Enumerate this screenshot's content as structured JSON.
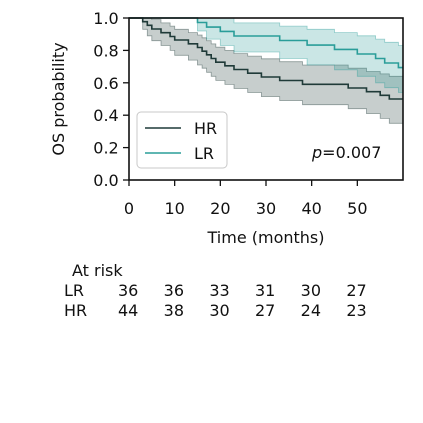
{
  "chart_data": {
    "type": "line",
    "subtype": "kaplan-meier",
    "xlabel": "Time (months)",
    "ylabel": "OS probability",
    "xlim": [
      0,
      60
    ],
    "ylim": [
      0,
      1
    ],
    "xticks": [
      "0",
      "10",
      "20",
      "30",
      "40",
      "50"
    ],
    "yticks": [
      "0.0",
      "0.2",
      "0.4",
      "0.6",
      "0.8",
      "1.0"
    ],
    "grid": false,
    "legend_position": "lower-left",
    "annotation": {
      "prefix": "p",
      "value": "=0.007"
    },
    "colors": {
      "HR": "#1f3a38",
      "LR": "#2a9d99"
    },
    "series": [
      {
        "name": "HR",
        "steps": [
          [
            0,
            1.0
          ],
          [
            3,
            0.977
          ],
          [
            4,
            0.955
          ],
          [
            5,
            0.932
          ],
          [
            7,
            0.909
          ],
          [
            9,
            0.886
          ],
          [
            10,
            0.864
          ],
          [
            13,
            0.841
          ],
          [
            15,
            0.818
          ],
          [
            16,
            0.795
          ],
          [
            17,
            0.773
          ],
          [
            18,
            0.75
          ],
          [
            19,
            0.727
          ],
          [
            21,
            0.705
          ],
          [
            23,
            0.682
          ],
          [
            26,
            0.659
          ],
          [
            29,
            0.636
          ],
          [
            33,
            0.614
          ],
          [
            38,
            0.591
          ],
          [
            48,
            0.568
          ],
          [
            52,
            0.545
          ],
          [
            55,
            0.523
          ],
          [
            57,
            0.5
          ]
        ],
        "ci_upper": [
          [
            0,
            1.0
          ],
          [
            3,
            1.0
          ],
          [
            4,
            1.0
          ],
          [
            5,
            0.99
          ],
          [
            7,
            0.97
          ],
          [
            9,
            0.95
          ],
          [
            10,
            0.93
          ],
          [
            13,
            0.91
          ],
          [
            15,
            0.895
          ],
          [
            16,
            0.878
          ],
          [
            17,
            0.86
          ],
          [
            18,
            0.84
          ],
          [
            19,
            0.82
          ],
          [
            21,
            0.8
          ],
          [
            23,
            0.78
          ],
          [
            26,
            0.765
          ],
          [
            29,
            0.748
          ],
          [
            33,
            0.73
          ],
          [
            38,
            0.71
          ],
          [
            48,
            0.69
          ],
          [
            52,
            0.67
          ],
          [
            55,
            0.655
          ],
          [
            57,
            0.64
          ]
        ],
        "ci_lower": [
          [
            0,
            1.0
          ],
          [
            3,
            0.93
          ],
          [
            4,
            0.89
          ],
          [
            5,
            0.86
          ],
          [
            7,
            0.83
          ],
          [
            9,
            0.8
          ],
          [
            10,
            0.77
          ],
          [
            13,
            0.74
          ],
          [
            15,
            0.71
          ],
          [
            16,
            0.69
          ],
          [
            17,
            0.665
          ],
          [
            18,
            0.64
          ],
          [
            19,
            0.615
          ],
          [
            21,
            0.59
          ],
          [
            23,
            0.565
          ],
          [
            26,
            0.54
          ],
          [
            29,
            0.515
          ],
          [
            33,
            0.49
          ],
          [
            38,
            0.465
          ],
          [
            48,
            0.44
          ],
          [
            52,
            0.41
          ],
          [
            55,
            0.38
          ],
          [
            57,
            0.35
          ]
        ]
      },
      {
        "name": "LR",
        "steps": [
          [
            0,
            1.0
          ],
          [
            15,
            0.972
          ],
          [
            17,
            0.944
          ],
          [
            20,
            0.917
          ],
          [
            23,
            0.889
          ],
          [
            33,
            0.861
          ],
          [
            39,
            0.833
          ],
          [
            45,
            0.806
          ],
          [
            50,
            0.778
          ],
          [
            54,
            0.75
          ],
          [
            56,
            0.722
          ],
          [
            59,
            0.694
          ]
        ],
        "ci_upper": [
          [
            0,
            1.0
          ],
          [
            15,
            1.0
          ],
          [
            17,
            1.0
          ],
          [
            20,
            1.0
          ],
          [
            23,
            0.97
          ],
          [
            33,
            0.95
          ],
          [
            39,
            0.93
          ],
          [
            45,
            0.91
          ],
          [
            50,
            0.89
          ],
          [
            54,
            0.87
          ],
          [
            56,
            0.85
          ],
          [
            59,
            0.83
          ]
        ],
        "ci_lower": [
          [
            0,
            1.0
          ],
          [
            15,
            0.92
          ],
          [
            17,
            0.87
          ],
          [
            20,
            0.83
          ],
          [
            23,
            0.79
          ],
          [
            33,
            0.75
          ],
          [
            39,
            0.71
          ],
          [
            45,
            0.68
          ],
          [
            50,
            0.64
          ],
          [
            54,
            0.6
          ],
          [
            56,
            0.57
          ],
          [
            59,
            0.54
          ]
        ]
      }
    ],
    "risk_table": {
      "title": "At risk",
      "times": [
        0,
        10,
        20,
        30,
        40,
        50
      ],
      "rows": [
        {
          "label": "LR",
          "counts": [
            "36",
            "36",
            "33",
            "31",
            "30",
            "27"
          ]
        },
        {
          "label": "HR",
          "counts": [
            "44",
            "38",
            "30",
            "27",
            "24",
            "23"
          ]
        }
      ]
    }
  }
}
